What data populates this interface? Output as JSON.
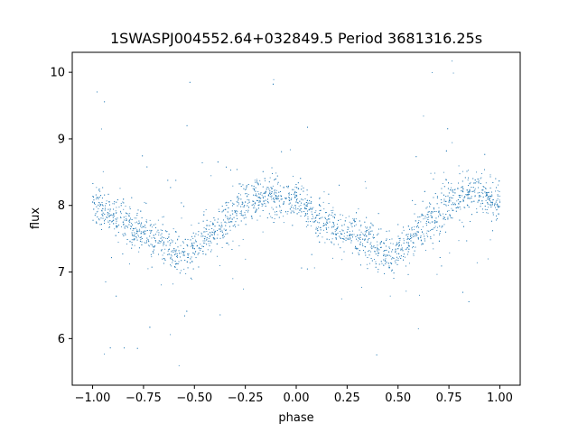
{
  "chart_data": {
    "type": "scatter",
    "title": "1SWASPJ004552.64+032849.5 Period 3681316.25s",
    "xlabel": "phase",
    "ylabel": "flux",
    "xlim": [
      -1.1,
      1.1
    ],
    "ylim": [
      5.3,
      10.3
    ],
    "xticks": [
      -1.0,
      -0.75,
      -0.5,
      -0.25,
      0.0,
      0.25,
      0.5,
      0.75,
      1.0
    ],
    "xtick_labels": [
      "−1.00",
      "−0.75",
      "−0.50",
      "−0.25",
      "0.00",
      "0.25",
      "0.50",
      "0.75",
      "1.00"
    ],
    "yticks": [
      6,
      7,
      8,
      9,
      10
    ],
    "ytick_labels": [
      "6",
      "7",
      "8",
      "9",
      "10"
    ],
    "grid": false,
    "marker_color": "#1f77b4",
    "series": [
      {
        "x": [
          -1.0,
          -0.95,
          -0.9,
          -0.85,
          -0.8,
          -0.75,
          -0.7,
          -0.65,
          -0.6,
          -0.55,
          -0.5,
          -0.45,
          -0.4,
          -0.35,
          -0.3,
          -0.25,
          -0.2,
          -0.15,
          -0.1,
          -0.05,
          0.0,
          0.05,
          0.1,
          0.15,
          0.2,
          0.25,
          0.3,
          0.35,
          0.4,
          0.45,
          0.5,
          0.55,
          0.6,
          0.65,
          0.7,
          0.75,
          0.8,
          0.85,
          0.9,
          0.95,
          1.0
        ],
        "y": [
          8.05,
          7.95,
          7.85,
          7.75,
          7.65,
          7.6,
          7.55,
          7.45,
          7.35,
          7.25,
          7.35,
          7.5,
          7.6,
          7.75,
          7.9,
          8.05,
          8.15,
          8.2,
          8.15,
          8.1,
          8.05,
          7.95,
          7.85,
          7.75,
          7.65,
          7.6,
          7.55,
          7.45,
          7.35,
          7.25,
          7.35,
          7.5,
          7.6,
          7.75,
          7.9,
          8.05,
          8.15,
          8.2,
          8.15,
          8.1,
          8.05
        ]
      }
    ]
  }
}
